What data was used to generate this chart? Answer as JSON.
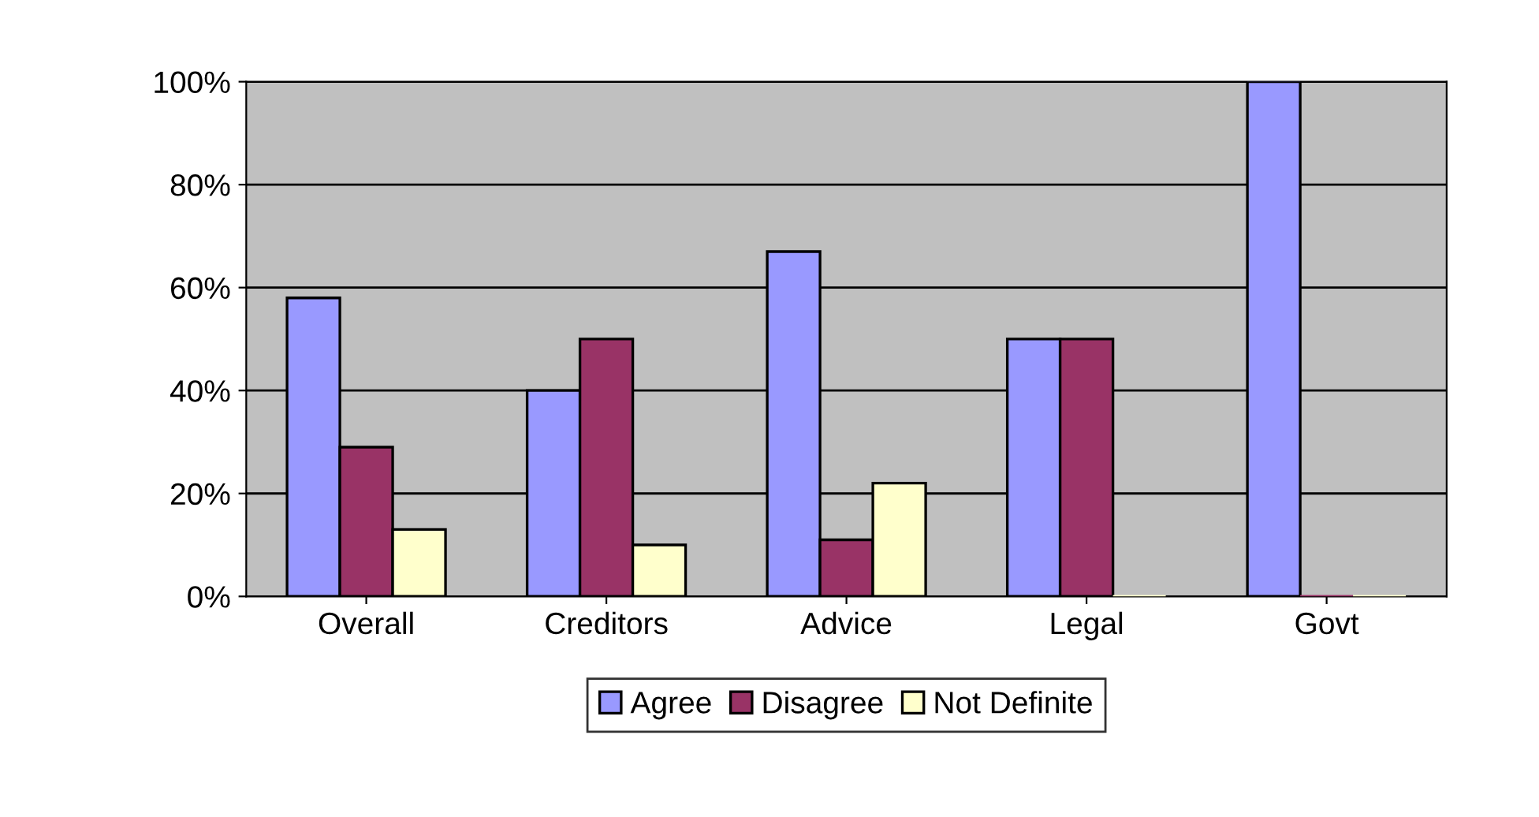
{
  "chart_data": {
    "type": "bar",
    "categories": [
      "Overall",
      "Creditors",
      "Advice",
      "Legal",
      "Govt"
    ],
    "series": [
      {
        "name": "Agree",
        "color": "#9999ff",
        "values": [
          58,
          40,
          67,
          50,
          100
        ]
      },
      {
        "name": "Disagree",
        "color": "#993366",
        "values": [
          29,
          50,
          11,
          50,
          0
        ]
      },
      {
        "name": "Not Definite",
        "color": "#ffffcc",
        "values": [
          13,
          10,
          22,
          0,
          0
        ]
      }
    ],
    "ylim": [
      0,
      100
    ],
    "yticks": [
      {
        "value": 0,
        "label": "0%"
      },
      {
        "value": 20,
        "label": "20%"
      },
      {
        "value": 40,
        "label": "40%"
      },
      {
        "value": 60,
        "label": "60%"
      },
      {
        "value": 80,
        "label": "80%"
      },
      {
        "value": 100,
        "label": "100%"
      }
    ],
    "grid": "y",
    "legend": "bottom"
  }
}
